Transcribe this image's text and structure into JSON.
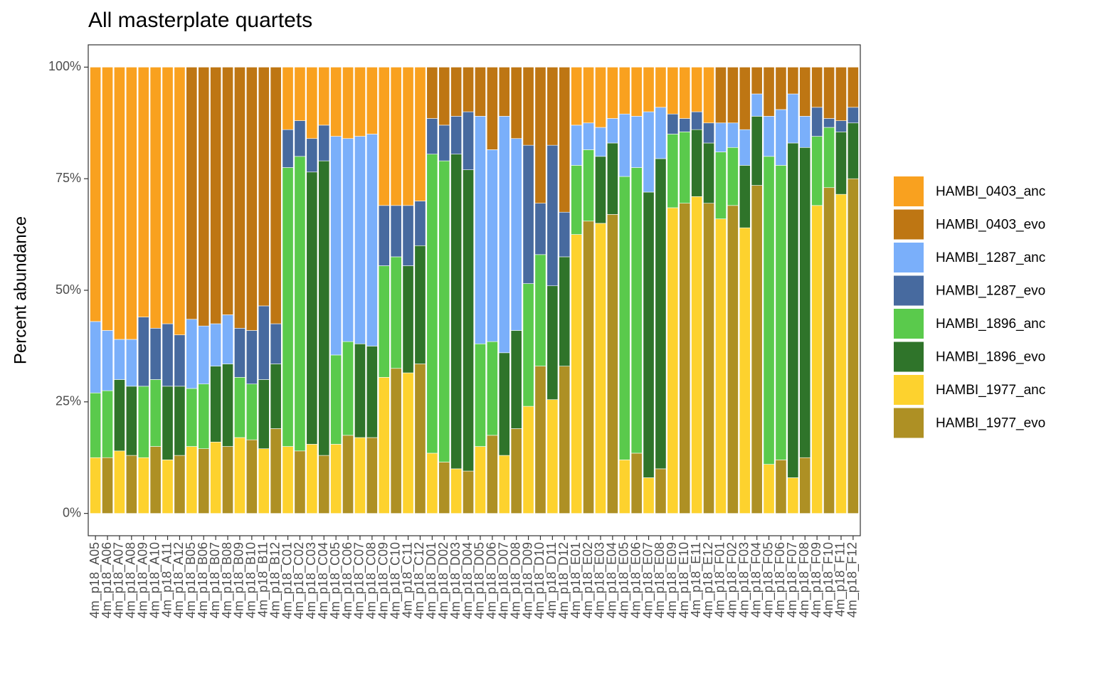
{
  "chart_data": {
    "type": "stacked_bar",
    "title": "All masterplate quartets",
    "y_label": "Percent abundance",
    "categories": [
      "4m_p18_A05",
      "4m_p18_A06",
      "4m_p18_A07",
      "4m_p18_A08",
      "4m_p18_A09",
      "4m_p18_A10",
      "4m_p18_A11",
      "4m_p18_A12",
      "4m_p18_B05",
      "4m_p18_B06",
      "4m_p18_B07",
      "4m_p18_B08",
      "4m_p18_B09",
      "4m_p18_B10",
      "4m_p18_B11",
      "4m_p18_B12",
      "4m_p18_C01",
      "4m_p18_C02",
      "4m_p18_C03",
      "4m_p18_C04",
      "4m_p18_C05",
      "4m_p18_C06",
      "4m_p18_C07",
      "4m_p18_C08",
      "4m_p18_C09",
      "4m_p18_C10",
      "4m_p18_C11",
      "4m_p18_C12",
      "4m_p18_D01",
      "4m_p18_D02",
      "4m_p18_D03",
      "4m_p18_D04",
      "4m_p18_D05",
      "4m_p18_D06",
      "4m_p18_D07",
      "4m_p18_D08",
      "4m_p18_D09",
      "4m_p18_D10",
      "4m_p18_D11",
      "4m_p18_D12",
      "4m_p18_E01",
      "4m_p18_E02",
      "4m_p18_E03",
      "4m_p18_E04",
      "4m_p18_E05",
      "4m_p18_E06",
      "4m_p18_E07",
      "4m_p18_E08",
      "4m_p18_E09",
      "4m_p18_E10",
      "4m_p18_E11",
      "4m_p18_E12",
      "4m_p18_F01",
      "4m_p18_F02",
      "4m_p18_F03",
      "4m_p18_F04",
      "4m_p18_F05",
      "4m_p18_F06",
      "4m_p18_F07",
      "4m_p18_F08",
      "4m_p18_F09",
      "4m_p18_F10",
      "4m_p18_F11",
      "4m_p18_F12"
    ],
    "series": [
      {
        "name": "HAMBI_0403_anc",
        "color": "#f9a11f",
        "values": [
          57,
          59,
          61,
          61,
          56,
          58.5,
          57.5,
          60,
          null,
          null,
          null,
          null,
          null,
          null,
          null,
          null,
          14,
          12,
          16,
          13,
          15.5,
          16,
          15.5,
          15,
          31,
          31,
          31,
          30,
          null,
          null,
          null,
          null,
          null,
          null,
          null,
          null,
          null,
          null,
          null,
          null,
          13,
          12.5,
          13.5,
          11.5,
          10.5,
          11,
          10,
          9,
          10.5,
          11.5,
          10,
          12.5,
          null,
          null,
          null,
          null,
          null,
          null,
          null,
          null,
          null,
          null,
          null,
          null
        ]
      },
      {
        "name": "HAMBI_0403_evo",
        "color": "#be7613",
        "values": [
          null,
          null,
          null,
          null,
          null,
          null,
          null,
          null,
          56.5,
          58,
          57.5,
          55.5,
          58.5,
          59,
          53.5,
          57.5,
          null,
          null,
          null,
          null,
          null,
          null,
          null,
          null,
          null,
          null,
          null,
          null,
          11.5,
          13,
          11,
          10,
          11,
          18.5,
          11,
          16,
          17.5,
          30.5,
          17.5,
          32.5,
          null,
          null,
          null,
          null,
          null,
          null,
          null,
          null,
          null,
          null,
          null,
          null,
          12.5,
          12.5,
          14,
          6,
          11,
          9.5,
          6,
          11,
          9,
          11.5,
          12,
          9
        ]
      },
      {
        "name": "HAMBI_1287_anc",
        "color": "#7aaffa",
        "values": [
          16,
          13.5,
          9,
          10.5,
          null,
          null,
          null,
          null,
          15.5,
          13,
          9.5,
          11,
          null,
          null,
          null,
          null,
          null,
          null,
          null,
          null,
          49,
          45.5,
          46.5,
          47.5,
          null,
          null,
          null,
          null,
          null,
          null,
          null,
          null,
          51,
          43,
          53,
          43,
          null,
          null,
          null,
          null,
          9,
          6,
          6.5,
          5.5,
          14,
          11.5,
          18,
          11.5,
          null,
          null,
          null,
          null,
          6.5,
          5.5,
          8,
          5,
          9,
          12.5,
          11,
          7,
          null,
          null,
          null,
          null
        ]
      },
      {
        "name": "HAMBI_1287_evo",
        "color": "#476a9f",
        "values": [
          null,
          null,
          null,
          null,
          15.5,
          11.5,
          14,
          11.5,
          null,
          null,
          null,
          null,
          11,
          12,
          16.5,
          9,
          8.5,
          8,
          7.5,
          8,
          null,
          null,
          null,
          null,
          13.5,
          11.5,
          13.5,
          10,
          8,
          8,
          8.5,
          13,
          null,
          null,
          null,
          null,
          31,
          11.5,
          31.5,
          10,
          null,
          null,
          null,
          null,
          null,
          null,
          null,
          null,
          4.5,
          3,
          4,
          4.5,
          null,
          null,
          null,
          null,
          null,
          null,
          null,
          null,
          6.5,
          2,
          2.5,
          3.5
        ]
      },
      {
        "name": "HAMBI_1896_anc",
        "color": "#5aca4c",
        "values": [
          14.5,
          15,
          null,
          null,
          16,
          15,
          null,
          null,
          13,
          14.5,
          null,
          null,
          13.5,
          12.5,
          null,
          null,
          62.5,
          66,
          null,
          null,
          20,
          21,
          null,
          null,
          25,
          25,
          null,
          null,
          67,
          67.5,
          null,
          null,
          23,
          21,
          null,
          null,
          27.5,
          25,
          null,
          null,
          15.5,
          16,
          null,
          null,
          63.5,
          64,
          null,
          null,
          16.5,
          16,
          null,
          null,
          15,
          13,
          null,
          null,
          69,
          66,
          null,
          null,
          15.5,
          13.5,
          null,
          null
        ]
      },
      {
        "name": "HAMBI_1896_evo",
        "color": "#2f742a",
        "values": [
          null,
          null,
          16,
          15.5,
          null,
          null,
          16.5,
          15.5,
          null,
          null,
          17,
          18.5,
          null,
          null,
          15.5,
          14.5,
          null,
          null,
          61,
          66,
          null,
          null,
          21,
          20.5,
          null,
          null,
          24,
          26.5,
          null,
          null,
          70.5,
          67.5,
          null,
          null,
          23,
          22,
          null,
          null,
          25.5,
          24.5,
          null,
          null,
          15,
          16,
          null,
          null,
          64,
          69.5,
          null,
          null,
          15,
          13.5,
          null,
          null,
          14,
          15.5,
          null,
          null,
          75,
          69.5,
          null,
          null,
          14,
          12.5
        ]
      },
      {
        "name": "HAMBI_1977_anc",
        "color": "#fdd22e",
        "values": [
          12.5,
          null,
          14,
          null,
          12.5,
          null,
          12,
          null,
          15,
          null,
          16,
          null,
          17,
          null,
          14.5,
          null,
          15,
          null,
          15.5,
          null,
          15.5,
          null,
          17,
          null,
          30.5,
          null,
          31.5,
          null,
          13.5,
          null,
          10,
          null,
          15,
          null,
          13,
          null,
          24,
          null,
          25.5,
          null,
          62.5,
          null,
          65,
          null,
          12,
          null,
          8,
          null,
          68.5,
          null,
          71,
          null,
          66,
          null,
          64,
          null,
          11,
          null,
          8,
          null,
          69,
          null,
          71.5,
          null
        ]
      },
      {
        "name": "HAMBI_1977_evo",
        "color": "#ae9024",
        "values": [
          null,
          12.5,
          null,
          13,
          null,
          15,
          null,
          13,
          null,
          14.5,
          null,
          15,
          null,
          16.5,
          null,
          19,
          null,
          14,
          null,
          13,
          null,
          17.5,
          null,
          17,
          null,
          32.5,
          null,
          33.5,
          null,
          11.5,
          null,
          9.5,
          null,
          17.5,
          null,
          19,
          null,
          33,
          null,
          33,
          null,
          65.5,
          null,
          67,
          null,
          13.5,
          null,
          10,
          null,
          69.5,
          null,
          69.5,
          null,
          69,
          null,
          73.5,
          null,
          12,
          null,
          12.5,
          null,
          73,
          null,
          75
        ]
      }
    ],
    "ylim": [
      -5,
      105
    ],
    "yticks": [
      {
        "value": 0,
        "label": "0%"
      },
      {
        "value": 25,
        "label": "25%"
      },
      {
        "value": 50,
        "label": "50%"
      },
      {
        "value": 75,
        "label": "75%"
      },
      {
        "value": 100,
        "label": "100%"
      }
    ]
  }
}
